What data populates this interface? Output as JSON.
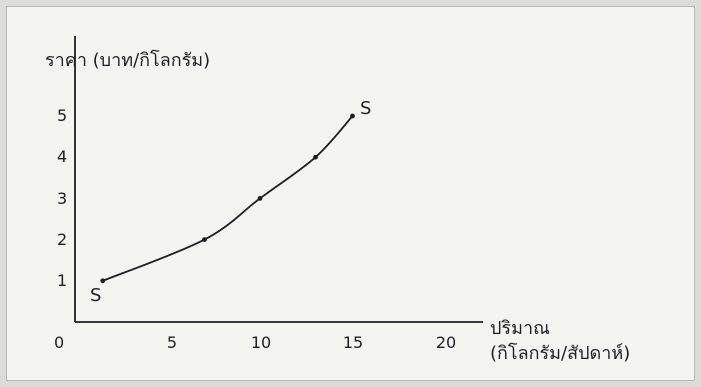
{
  "chart_data": {
    "type": "line",
    "title": "",
    "ylabel": "ราคา (บาท/กิโลกรัม)",
    "xlabel_line1": "ปริมาณ",
    "xlabel_line2": "(กิโลกรัม/สัปดาห์)",
    "origin_label": "0",
    "x_ticks": [
      "5",
      "10",
      "15",
      "20"
    ],
    "y_ticks": [
      "1",
      "2",
      "3",
      "4",
      "5"
    ],
    "xlim": [
      0,
      22
    ],
    "ylim": [
      0,
      5.6
    ],
    "grid": false,
    "series": [
      {
        "start_label": "S",
        "end_label": "S",
        "points": [
          {
            "x": 1.5,
            "y": 1
          },
          {
            "x": 7,
            "y": 2
          },
          {
            "x": 10,
            "y": 3
          },
          {
            "x": 13,
            "y": 4
          },
          {
            "x": 15,
            "y": 5
          }
        ]
      }
    ]
  }
}
